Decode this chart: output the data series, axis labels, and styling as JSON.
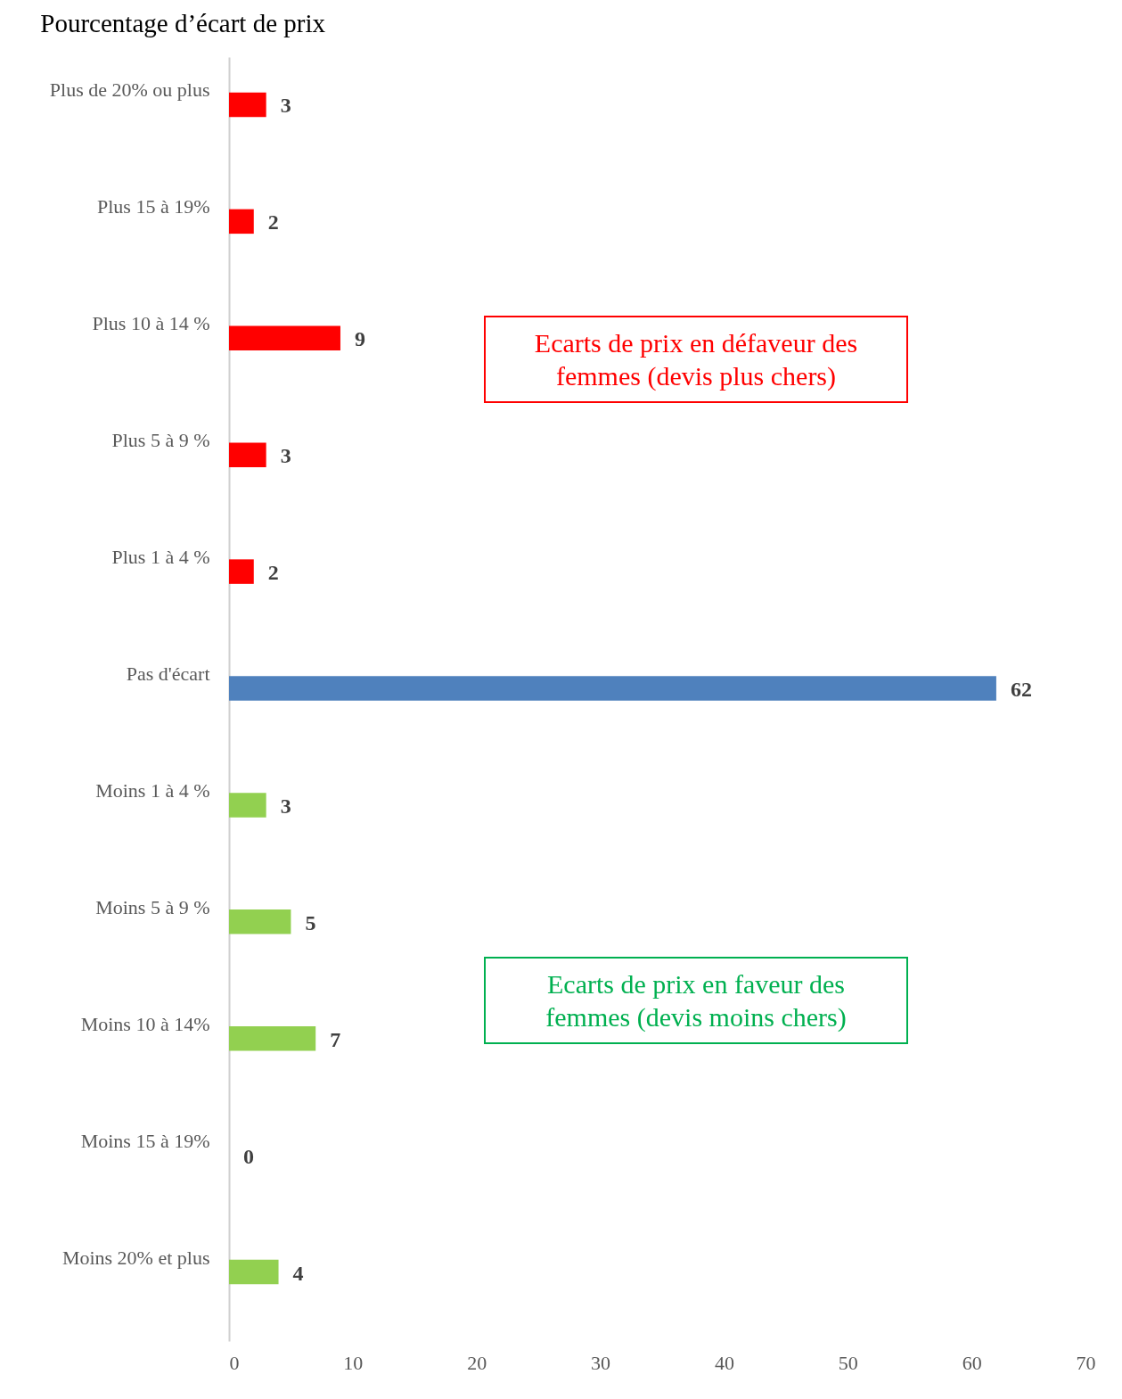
{
  "chart_data": {
    "type": "bar",
    "orientation": "horizontal",
    "title": "Pourcentage d’écart de prix",
    "categories": [
      "Plus de 20% ou plus",
      "Plus 15 à 19%",
      "Plus 10 à 14 %",
      "Plus 5 à 9 %",
      "Plus 1 à 4 %",
      "Pas d'écart",
      "Moins 1 à 4 %",
      "Moins 5 à 9 %",
      "Moins 10 à 14%",
      "Moins 15 à 19%",
      "Moins 20% et plus"
    ],
    "values": [
      3,
      2,
      9,
      3,
      2,
      62,
      3,
      5,
      7,
      0,
      4
    ],
    "colors": [
      "#ff0000",
      "#ff0000",
      "#ff0000",
      "#ff0000",
      "#ff0000",
      "#4f81bd",
      "#92d050",
      "#92d050",
      "#92d050",
      "#92d050",
      "#92d050"
    ],
    "xlim": [
      0,
      70
    ],
    "xticks": [
      0,
      10,
      20,
      30,
      40,
      50,
      60,
      70
    ],
    "data_labels": true,
    "annotations": [
      "Ecarts de prix en défaveur des femmes (devis plus chers)",
      "Ecarts de prix en faveur des femmes (devis moins chers)"
    ]
  }
}
